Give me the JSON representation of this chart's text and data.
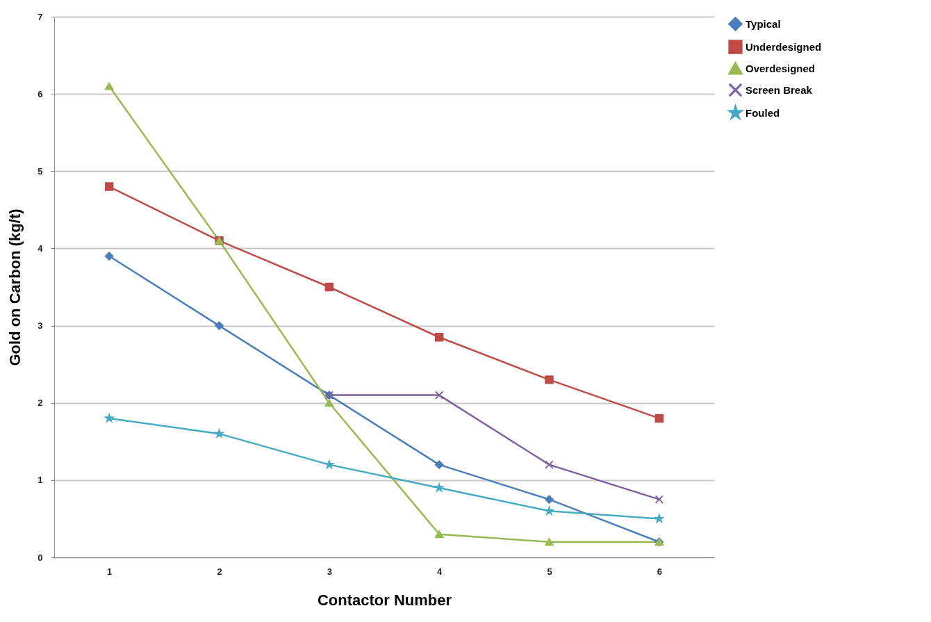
{
  "chart_data": {
    "type": "line",
    "xlabel": "Contactor Number",
    "ylabel": "Gold on Carbon (kg/t)",
    "categories": [
      "1",
      "2",
      "3",
      "4",
      "5",
      "6"
    ],
    "series": [
      {
        "name": "Typical",
        "color": "#4a7ebb",
        "marker": "diamond",
        "values": [
          3.9,
          3.0,
          2.1,
          1.2,
          0.75,
          0.2
        ]
      },
      {
        "name": "Underdesigned",
        "color": "#be4b48",
        "marker": "square",
        "values": [
          4.8,
          4.1,
          3.5,
          2.85,
          2.3,
          1.8
        ]
      },
      {
        "name": "Overdesigned",
        "color": "#98b954",
        "marker": "triangle",
        "values": [
          6.1,
          4.1,
          2.0,
          0.3,
          0.2,
          0.2
        ]
      },
      {
        "name": "Screen Break",
        "color": "#7d60a0",
        "marker": "cross",
        "values": [
          null,
          null,
          2.1,
          2.1,
          1.2,
          0.75
        ]
      },
      {
        "name": "Fouled",
        "color": "#46aac5",
        "marker": "star",
        "values": [
          1.8,
          1.6,
          1.2,
          0.9,
          0.6,
          0.5
        ]
      }
    ],
    "ylim": [
      0,
      7
    ],
    "yticks": [
      0,
      1,
      2,
      3,
      4,
      5,
      6,
      7
    ],
    "grid": "y",
    "legend": "right",
    "line_style": "solid"
  }
}
